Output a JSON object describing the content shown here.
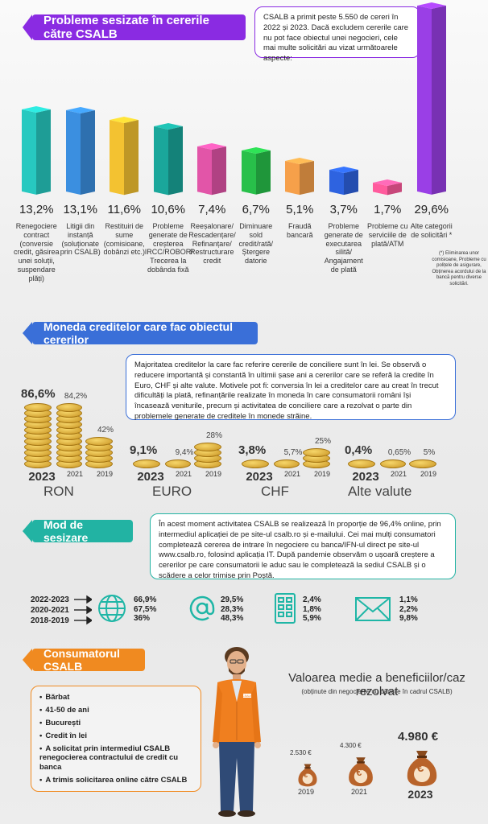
{
  "section1": {
    "title": "Probleme sesizate în cererile către CSALB",
    "note": "CSALB a primit peste 5.550 de cereri în 2022 și 2023. Dacă excludem cererile care nu pot face obiectul unei negocieri, cele mai multe solicitări au vizat următoarele aspecte:",
    "footnote": "(*) Eliminarea unor comisioane, Probleme cu polițele de asigurare, Obținerea acordului de la bancă pentru diverse solicitări."
  },
  "section2": {
    "title": "Moneda creditelor care fac obiectul cererilor",
    "note": "Majoritatea creditelor la care fac referire cererile de conciliere sunt în lei. Se observă o reducere importantă și constantă în ultimii șase ani a cererilor care se referă la credite în Euro, CHF și alte valute. Motivele pot fi: conversia în lei a creditelor care au creat în trecut dificultăți la plată, refinanțările realizate în moneda în care consumatorii români își încasează veniturile, precum și activitatea de conciliere care a rezolvat o parte din problemele generate de creditele în monede străine."
  },
  "section3": {
    "title": "Mod de sesizare",
    "note": "În acest moment activitatea CSALB se realizează în proporție de 96,4% online, prin intermediul aplicației de pe site-ul csalb.ro și e-mailului. Cei mai mulți consumatori completează cererea de intrare în negociere cu banca/IFN-ul direct pe site-ul www.csalb.ro, folosind aplicația IT. După pandemie observăm o ușoară creștere a cererilor pe care consumatorii le aduc sau le completează la sediul CSALB și o scădere a celor trimise prin Poștă.",
    "years": [
      "2022-2023",
      "2020-2021",
      "2018-2019"
    ],
    "channels": [
      {
        "icon": "globe-icon",
        "values": [
          "66,9%",
          "67,5%",
          "36%"
        ]
      },
      {
        "icon": "at-sign-icon",
        "values": [
          "29,5%",
          "28,3%",
          "48,3%"
        ]
      },
      {
        "icon": "building-icon",
        "values": [
          "2,4%",
          "1,8%",
          "5,9%"
        ]
      },
      {
        "icon": "envelope-icon",
        "values": [
          "1,1%",
          "2,2%",
          "9,8%"
        ]
      }
    ]
  },
  "section4": {
    "title": "Consumatorul CSALB",
    "traits": [
      "Bărbat",
      "41-50 de ani",
      "București",
      "Credit în lei",
      "A solicitat prin intermediul CSALB renegocierea contractului de credit cu banca",
      "A trimis solicitarea online către CSALB"
    ],
    "person_icon_badge": "CSALB",
    "benefit_title": "Valoarea medie a beneficiilor/caz rezolvat",
    "benefit_subtitle": "(obținute din negocierile cu băncile în cadrul CSALB)",
    "benefits": [
      {
        "year": "2019",
        "value": "2.530 €"
      },
      {
        "year": "2021",
        "value": "4.300 €"
      },
      {
        "year": "2023",
        "value": "4.980 €"
      }
    ],
    "euro_symbol": "€"
  },
  "chart_data": [
    {
      "type": "bar",
      "title": "Probleme sesizate în cererile către CSALB",
      "categories": [
        "Renegociere contract (conversie credit, găsirea unei soluții, suspendare plăți)",
        "Litigii din instanță (soluționate prin CSALB)",
        "Restituiri de sume (comisioane, dobânzi etc.)",
        "Probleme generate de creșterea IRCC/ROBOR/ Trecerea la dobânda fixă",
        "Reeșalonare/ Rescadențare/ Refinanțare/ Restructurare credit",
        "Diminuare sold credit/rată/ Ștergere datorie",
        "Fraudă bancară",
        "Probleme generate de executarea silită/ Angajament de plată",
        "Probleme cu serviciile de plată/ATM",
        "Alte categorii de solicitări *"
      ],
      "values": [
        13.2,
        13.1,
        11.6,
        10.6,
        7.4,
        6.7,
        5.1,
        3.7,
        1.7,
        29.6
      ],
      "value_labels": [
        "13,2%",
        "13,1%",
        "11,6%",
        "10,6%",
        "7,4%",
        "6,7%",
        "5,1%",
        "3,7%",
        "1,7%",
        "29,6%"
      ],
      "colors": [
        "#27c9c0",
        "#3b8fe0",
        "#f3c231",
        "#1aa79b",
        "#e255a8",
        "#28c04a",
        "#f6a04a",
        "#2e63e0",
        "#ff5b9d",
        "#9a3fe6"
      ],
      "ylim": [
        0,
        30
      ]
    },
    {
      "type": "bar",
      "title": "Moneda creditelor care fac obiectul cererilor",
      "groups": [
        {
          "name": "RON",
          "years": [
            "2023",
            "2021",
            "2019"
          ],
          "values": [
            86.6,
            84.2,
            42
          ],
          "labels": [
            "86,6%",
            "84,2%",
            "42%"
          ]
        },
        {
          "name": "EURO",
          "years": [
            "2023",
            "2021",
            "2019"
          ],
          "values": [
            9.1,
            9.4,
            28
          ],
          "labels": [
            "9,1%",
            "9,4%",
            "28%"
          ]
        },
        {
          "name": "CHF",
          "years": [
            "2023",
            "2021",
            "2019"
          ],
          "values": [
            3.8,
            5.7,
            25
          ],
          "labels": [
            "3,8%",
            "5,7%",
            "25%"
          ]
        },
        {
          "name": "Alte valute",
          "years": [
            "2023",
            "2021",
            "2019"
          ],
          "values": [
            0.4,
            0.65,
            5
          ],
          "labels": [
            "0,4%",
            "0,65%",
            "5%"
          ]
        }
      ]
    }
  ],
  "colors": {
    "purple": "#8a2be2",
    "blue": "#3a6fd8",
    "teal": "#22b3a3",
    "orange": "#f08a20"
  }
}
